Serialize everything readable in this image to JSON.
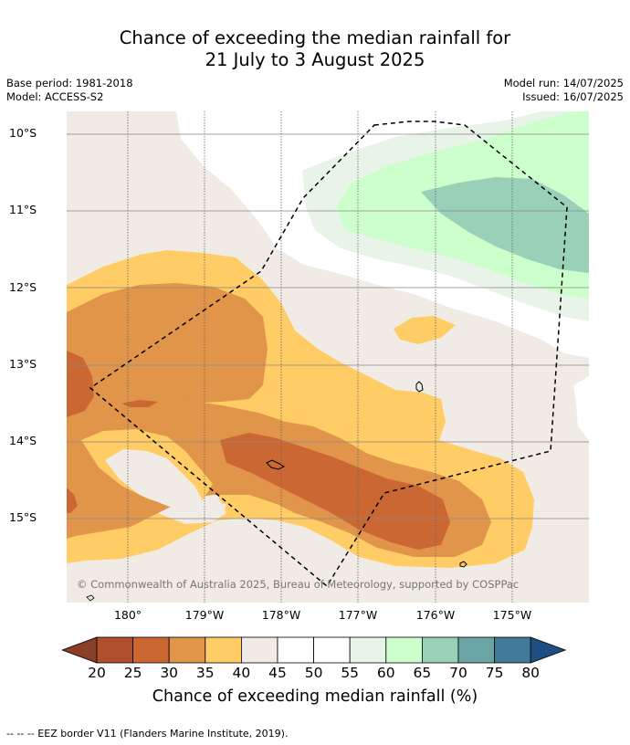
{
  "title": {
    "line1": "Chance of exceeding the median rainfall for",
    "line2": "21 July to 3 August 2025"
  },
  "info_left": {
    "base_period": "Base period: 1981-2018",
    "model": "Model: ACCESS-S2"
  },
  "info_right": {
    "model_run": "Model run: 14/07/2025",
    "issued": "Issued: 16/07/2025"
  },
  "map": {
    "lat_labels": [
      "10°S",
      "11°S",
      "12°S",
      "13°S",
      "14°S",
      "15°S"
    ],
    "lon_labels": [
      "180°",
      "179°W",
      "178°W",
      "177°W",
      "176°W",
      "175°W"
    ],
    "copyright": "© Commonwealth of Australia 2025, Bureau of Meteorology, supported by COSPPac",
    "colors": {
      "c20_25": "#af4f2b",
      "c25_30": "#cb6733",
      "c30_35": "#e0954a",
      "c35_40": "#ffcc66",
      "c40_50": "#f0ebe5",
      "c50_60": "#ffffff",
      "c55_60": "#e8f4e8",
      "c60_65": "#ccffcc",
      "c65_70": "#99d1b8",
      "eez_border": "#000000",
      "grid": "#888888"
    }
  },
  "colorbar": {
    "ticks": [
      "20",
      "25",
      "30",
      "35",
      "40",
      "45",
      "50",
      "55",
      "60",
      "65",
      "70",
      "75",
      "80"
    ],
    "colors": [
      "#af4f2b",
      "#cb6733",
      "#e0954a",
      "#ffcc66",
      "#f0ebe5",
      "#ffffff",
      "#ffffff",
      "#e8f4e8",
      "#ccffcc",
      "#99d1b8",
      "#6aa5a5",
      "#3f7a99"
    ],
    "under_color": "#8a3e25",
    "over_color": "#1e4f82",
    "label": "Chance of exceeding median rainfall (%)"
  },
  "footer": "--  --  -- EEZ border V11 (Flanders Marine Institute, 2019)."
}
